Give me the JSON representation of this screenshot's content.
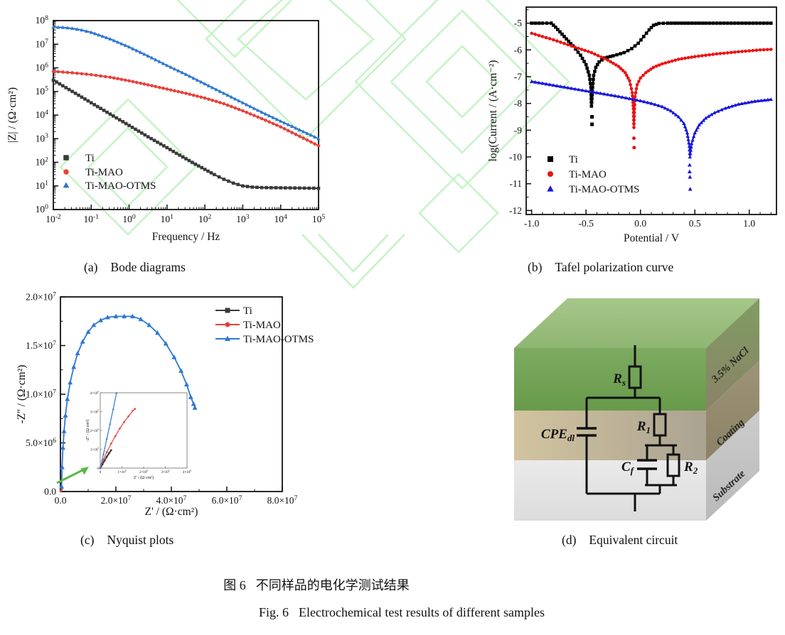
{
  "figure": {
    "panel_captions": [
      {
        "tag": "(a)",
        "text": "Bode diagrams"
      },
      {
        "tag": "(b)",
        "text": "Tafel polarization curve"
      },
      {
        "tag": "(c)",
        "text": "Nyquist plots"
      },
      {
        "tag": "(d)",
        "text": "Equivalent circuit"
      }
    ],
    "caption_zh_tag": "图 6",
    "caption_zh_text": "不同样品的电化学测试结果",
    "caption_en_tag": "Fig. 6",
    "caption_en_text": "Electrochemical test results of different samples"
  },
  "colors": {
    "axis": "#111111",
    "watermark_green": "#8ce98c",
    "arrow_green": "#5cb84a",
    "bode_black": "#3a3a3a",
    "bode_red": "#e8403a",
    "bode_blue": "#2e78d2",
    "tafel_black": "#000000",
    "tafel_red": "#ee1212",
    "tafel_blue": "#1717dd",
    "layer_green_top": "#9dbf80",
    "layer_green_front": "#74a257",
    "layer_green_side": "#848a66",
    "layer_coating_front": "#bfb398",
    "layer_coating_side": "#958c72",
    "layer_substrate_front": "#e4e4e4",
    "layer_substrate_side": "#c2c2c2"
  },
  "chart_data": [
    {
      "id": "bode",
      "type": "line",
      "panel": "a",
      "xlabel": "Frequency / Hz",
      "ylabel": "|Z| / (Ω·cm²)",
      "xscale": "log10",
      "yscale": "log10",
      "xlim_exp": [
        -2,
        5
      ],
      "ylim_exp": [
        0,
        8
      ],
      "xticks_exp": [
        -2,
        -1,
        0,
        1,
        2,
        3,
        4,
        5
      ],
      "yticks_exp": [
        0,
        1,
        2,
        3,
        4,
        5,
        6,
        7,
        8
      ],
      "legend": [
        "Ti",
        "Ti-MAO",
        "Ti-MAO-OTMS"
      ],
      "legend_position": "lower-left",
      "series": [
        {
          "name": "Ti",
          "marker": "square",
          "color": "#3a3a3a",
          "log_points": [
            [
              -2,
              5.48
            ],
            [
              -1.75,
              5.24
            ],
            [
              -1.5,
              5.0
            ],
            [
              -1.25,
              4.76
            ],
            [
              -1,
              4.52
            ],
            [
              -0.75,
              4.28
            ],
            [
              -0.5,
              4.04
            ],
            [
              -0.25,
              3.8
            ],
            [
              0,
              3.56
            ],
            [
              0.25,
              3.32
            ],
            [
              0.5,
              3.08
            ],
            [
              0.75,
              2.85
            ],
            [
              1,
              2.62
            ],
            [
              1.25,
              2.38
            ],
            [
              1.5,
              2.15
            ],
            [
              1.75,
              1.92
            ],
            [
              2,
              1.7
            ],
            [
              2.25,
              1.48
            ],
            [
              2.5,
              1.28
            ],
            [
              2.75,
              1.12
            ],
            [
              3,
              1.0
            ],
            [
              3.25,
              0.95
            ],
            [
              3.5,
              0.93
            ],
            [
              4,
              0.92
            ],
            [
              4.5,
              0.91
            ],
            [
              5,
              0.9
            ]
          ]
        },
        {
          "name": "Ti-MAO",
          "marker": "circle",
          "color": "#e8403a",
          "log_points": [
            [
              -2,
              5.85
            ],
            [
              -1.5,
              5.79
            ],
            [
              -1,
              5.71
            ],
            [
              -0.5,
              5.6
            ],
            [
              0,
              5.45
            ],
            [
              0.5,
              5.28
            ],
            [
              1,
              5.1
            ],
            [
              1.5,
              4.92
            ],
            [
              2,
              4.72
            ],
            [
              2.5,
              4.48
            ],
            [
              3,
              4.18
            ],
            [
              3.5,
              3.85
            ],
            [
              4,
              3.5
            ],
            [
              4.5,
              3.1
            ],
            [
              5,
              2.7
            ]
          ]
        },
        {
          "name": "Ti-MAO-OTMS",
          "marker": "triangle",
          "color": "#2e78d2",
          "log_points": [
            [
              -2,
              7.72
            ],
            [
              -1.75,
              7.71
            ],
            [
              -1.5,
              7.67
            ],
            [
              -1.25,
              7.6
            ],
            [
              -1,
              7.5
            ],
            [
              -0.5,
              7.22
            ],
            [
              0,
              6.88
            ],
            [
              0.5,
              6.5
            ],
            [
              1,
              6.1
            ],
            [
              1.5,
              5.72
            ],
            [
              2,
              5.32
            ],
            [
              2.5,
              4.92
            ],
            [
              3,
              4.52
            ],
            [
              3.5,
              4.12
            ],
            [
              4,
              3.74
            ],
            [
              4.5,
              3.37
            ],
            [
              5,
              3.0
            ]
          ]
        }
      ]
    },
    {
      "id": "tafel",
      "type": "line",
      "panel": "b",
      "xlabel": "Potential / V",
      "ylabel": "log(Current / (A·cm⁻²)",
      "xlim": [
        -1.05,
        1.25
      ],
      "ylim": [
        -12.15,
        -4.4
      ],
      "xticks": [
        -1.0,
        -0.5,
        0.0,
        0.5,
        1.0
      ],
      "yticks": [
        -12,
        -11,
        -10,
        -9,
        -8,
        -7,
        -6,
        -5
      ],
      "legend": [
        "Ti",
        "Ti-MAO",
        "Ti-MAO-OTMS"
      ],
      "legend_position": "lower-left",
      "series": [
        {
          "name": "Ti",
          "marker": "square",
          "color": "#000000",
          "points": [
            [
              -1.0,
              -5.0
            ],
            [
              -0.9,
              -5.0
            ],
            [
              -0.82,
              -5.0
            ],
            [
              -0.78,
              -5.15
            ],
            [
              -0.7,
              -5.5
            ],
            [
              -0.62,
              -5.85
            ],
            [
              -0.55,
              -6.2
            ],
            [
              -0.5,
              -6.55
            ],
            [
              -0.47,
              -6.95
            ],
            [
              -0.455,
              -7.4
            ],
            [
              -0.45,
              -8.1
            ],
            [
              -0.44,
              -7.4
            ],
            [
              -0.43,
              -6.95
            ],
            [
              -0.41,
              -6.65
            ],
            [
              -0.38,
              -6.45
            ],
            [
              -0.33,
              -6.3
            ],
            [
              -0.25,
              -6.22
            ],
            [
              -0.15,
              -6.1
            ],
            [
              -0.08,
              -5.95
            ],
            [
              -0.02,
              -5.75
            ],
            [
              0.03,
              -5.5
            ],
            [
              0.08,
              -5.25
            ],
            [
              0.12,
              -5.08
            ],
            [
              0.17,
              -5.01
            ],
            [
              0.25,
              -5.0
            ],
            [
              0.6,
              -5.0
            ],
            [
              0.9,
              -5.0
            ],
            [
              1.2,
              -5.0
            ]
          ],
          "scatter": [
            [
              -0.445,
              -8.5
            ],
            [
              -0.445,
              -8.78
            ]
          ]
        },
        {
          "name": "Ti-MAO",
          "marker": "circle",
          "color": "#ee1212",
          "points": [
            [
              -1.0,
              -5.38
            ],
            [
              -0.8,
              -5.62
            ],
            [
              -0.6,
              -5.9
            ],
            [
              -0.45,
              -6.1
            ],
            [
              -0.3,
              -6.38
            ],
            [
              -0.2,
              -6.62
            ],
            [
              -0.14,
              -6.85
            ],
            [
              -0.1,
              -7.15
            ],
            [
              -0.075,
              -7.6
            ],
            [
              -0.065,
              -8.2
            ],
            [
              -0.06,
              -8.9
            ],
            [
              -0.055,
              -8.2
            ],
            [
              -0.05,
              -7.75
            ],
            [
              -0.03,
              -7.3
            ],
            [
              0.0,
              -7.05
            ],
            [
              0.05,
              -6.85
            ],
            [
              0.12,
              -6.65
            ],
            [
              0.2,
              -6.52
            ],
            [
              0.35,
              -6.35
            ],
            [
              0.5,
              -6.25
            ],
            [
              0.7,
              -6.15
            ],
            [
              0.9,
              -6.07
            ],
            [
              1.1,
              -6.0
            ],
            [
              1.2,
              -5.98
            ]
          ],
          "scatter": [
            [
              -0.06,
              -9.3
            ],
            [
              -0.058,
              -9.65
            ]
          ]
        },
        {
          "name": "Ti-MAO-OTMS",
          "marker": "triangle",
          "color": "#1717dd",
          "points": [
            [
              -1.0,
              -7.18
            ],
            [
              -0.8,
              -7.32
            ],
            [
              -0.6,
              -7.46
            ],
            [
              -0.4,
              -7.6
            ],
            [
              -0.2,
              -7.74
            ],
            [
              0.0,
              -7.9
            ],
            [
              0.1,
              -8.0
            ],
            [
              0.2,
              -8.12
            ],
            [
              0.28,
              -8.28
            ],
            [
              0.35,
              -8.5
            ],
            [
              0.4,
              -8.75
            ],
            [
              0.43,
              -9.1
            ],
            [
              0.45,
              -9.6
            ],
            [
              0.455,
              -10.0
            ],
            [
              0.47,
              -9.5
            ],
            [
              0.5,
              -9.1
            ],
            [
              0.54,
              -8.8
            ],
            [
              0.6,
              -8.55
            ],
            [
              0.68,
              -8.35
            ],
            [
              0.78,
              -8.18
            ],
            [
              0.9,
              -8.03
            ],
            [
              1.05,
              -7.92
            ],
            [
              1.2,
              -7.85
            ]
          ],
          "scatter": [
            [
              0.452,
              -10.3
            ],
            [
              0.452,
              -10.55
            ],
            [
              0.455,
              -10.75
            ],
            [
              0.457,
              -11.2
            ]
          ]
        }
      ]
    },
    {
      "id": "nyquist",
      "type": "scatter-line",
      "panel": "c",
      "xlabel": "Z' / (Ω·cm²)",
      "ylabel": "-Z'' / (Ω·cm²)",
      "units": "×10⁷ Ω·cm²",
      "xlim": [
        0,
        8
      ],
      "ylim": [
        0,
        2
      ],
      "xticks": [
        0,
        2,
        4,
        6,
        8
      ],
      "yticks": [
        0,
        0.5,
        1.0,
        1.5,
        2.0
      ],
      "xtick_labels": [
        "0.0",
        "2.0x10^7",
        "4.0x10^7",
        "6.0x10^7",
        "8.0x10^7"
      ],
      "ytick_labels": [
        "0.0",
        "5.0x10^6",
        "1.0x10^7",
        "1.5x10^7",
        "2.0x10^7"
      ],
      "legend": [
        "Ti",
        "Ti-MAO",
        "Ti-MAO-OTMS"
      ],
      "legend_position": "upper-right",
      "series": [
        {
          "name": "Ti",
          "marker": "square",
          "color": "#3a3a3a",
          "points": [
            [
              0.01,
              0.005
            ],
            [
              0.04,
              0.025
            ]
          ]
        },
        {
          "name": "Ti-MAO",
          "marker": "circle",
          "color": "#e8403a",
          "points": [
            [
              0.01,
              0.005
            ],
            [
              0.05,
              0.035
            ]
          ]
        },
        {
          "name": "Ti-MAO-OTMS",
          "marker": "triangle",
          "color": "#2e78d2",
          "points": [
            [
              0.04,
              0.05
            ],
            [
              0.06,
              0.25
            ],
            [
              0.09,
              0.45
            ],
            [
              0.13,
              0.62
            ],
            [
              0.18,
              0.78
            ],
            [
              0.25,
              0.95
            ],
            [
              0.35,
              1.12
            ],
            [
              0.48,
              1.28
            ],
            [
              0.62,
              1.42
            ],
            [
              0.8,
              1.54
            ],
            [
              1.0,
              1.64
            ],
            [
              1.2,
              1.71
            ],
            [
              1.45,
              1.76
            ],
            [
              1.7,
              1.79
            ],
            [
              2.0,
              1.8
            ],
            [
              2.3,
              1.8
            ],
            [
              2.6,
              1.8
            ],
            [
              2.9,
              1.77
            ],
            [
              3.2,
              1.71
            ],
            [
              3.5,
              1.63
            ],
            [
              3.8,
              1.52
            ],
            [
              4.1,
              1.38
            ],
            [
              4.35,
              1.24
            ],
            [
              4.55,
              1.1
            ],
            [
              4.7,
              0.97
            ],
            [
              4.8,
              0.9
            ],
            [
              4.85,
              0.86
            ]
          ]
        }
      ],
      "inset": {
        "xlabel": "Z' / (Ω·cm²)",
        "ylabel": "-Z'' / (Ω·cm²)",
        "units": "×10⁵ Ω·cm²",
        "xlim": [
          0,
          4
        ],
        "ylim": [
          0,
          4
        ],
        "xtick_labels": [
          "0",
          "1x10^5",
          "2x10^5",
          "3x10^5",
          "4x10^5"
        ],
        "ytick_labels": [
          "0",
          "1x10^5",
          "2x10^5",
          "3x10^5",
          "4x10^5"
        ],
        "series": [
          {
            "name": "Ti",
            "marker": "square",
            "color": "#3a3a3a",
            "points": [
              [
                0,
                0
              ],
              [
                0.1,
                0.2
              ],
              [
                0.2,
                0.4
              ],
              [
                0.3,
                0.6
              ],
              [
                0.4,
                0.78
              ],
              [
                0.5,
                0.95
              ]
            ]
          },
          {
            "name": "Ti-MAO",
            "marker": "circle",
            "color": "#e8403a",
            "points": [
              [
                0,
                0
              ],
              [
                0.15,
                0.45
              ],
              [
                0.3,
                0.85
              ],
              [
                0.5,
                1.3
              ],
              [
                0.7,
                1.7
              ],
              [
                0.9,
                2.1
              ],
              [
                1.1,
                2.45
              ],
              [
                1.3,
                2.75
              ],
              [
                1.5,
                3.05
              ],
              [
                1.6,
                3.15
              ]
            ]
          },
          {
            "name": "Ti-MAO-OTMS",
            "marker": "triangle",
            "color": "#2e78d2",
            "points": [
              [
                0,
                0
              ],
              [
                0.15,
                0.75
              ],
              [
                0.3,
                1.55
              ],
              [
                0.45,
                2.35
              ],
              [
                0.6,
                3.15
              ],
              [
                0.75,
                4.0
              ]
            ]
          }
        ]
      }
    },
    {
      "id": "equivalent-circuit",
      "type": "diagram",
      "panel": "d",
      "layers": [
        {
          "label": "3.5% NaCl"
        },
        {
          "label": "Coating"
        },
        {
          "label": "Substrate"
        }
      ],
      "components": [
        {
          "name": "Rs",
          "label": "R",
          "sub": "s"
        },
        {
          "name": "CPEdl",
          "label": "CPE",
          "sub": "dl"
        },
        {
          "name": "R1",
          "label": "R",
          "sub": "1"
        },
        {
          "name": "Cf",
          "label": "C",
          "sub": "f"
        },
        {
          "name": "R2",
          "label": "R",
          "sub": "2"
        }
      ]
    }
  ]
}
